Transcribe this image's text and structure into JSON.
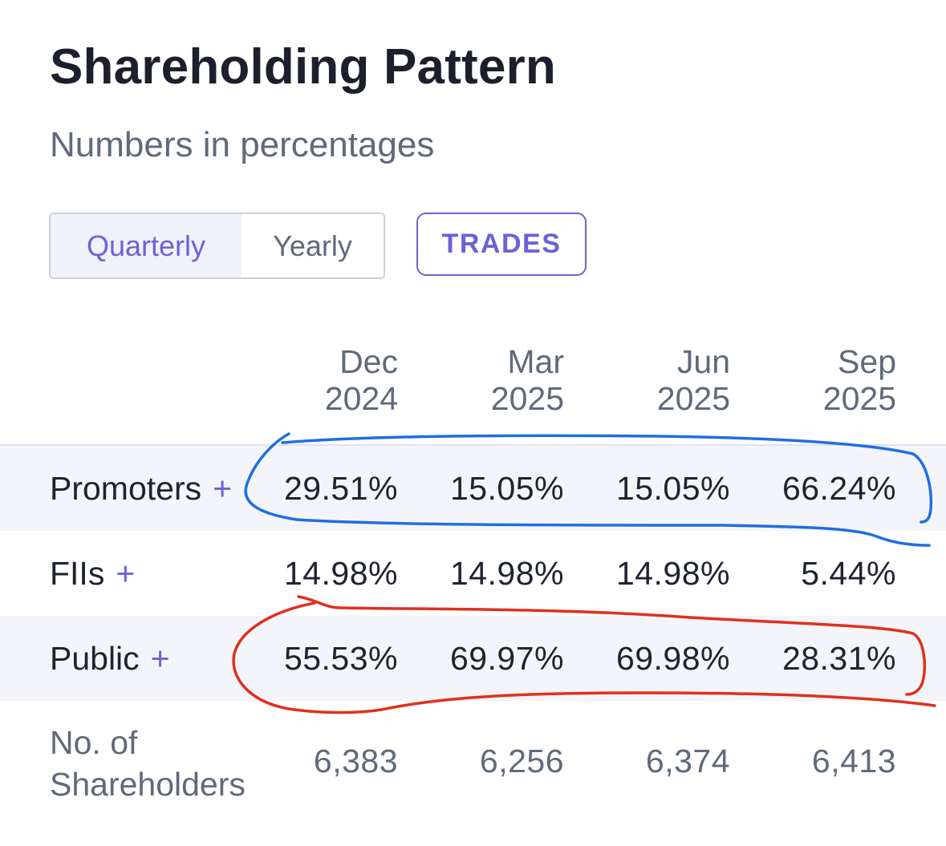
{
  "header": {
    "title": "Shareholding Pattern",
    "subtitle": "Numbers in percentages"
  },
  "controls": {
    "period_options": [
      "Quarterly",
      "Yearly"
    ],
    "selected_period": "Quarterly",
    "trades_label": "TRADES"
  },
  "table": {
    "columns": [
      {
        "month": "Dec",
        "year": "2024"
      },
      {
        "month": "Mar",
        "year": "2025"
      },
      {
        "month": "Jun",
        "year": "2025"
      },
      {
        "month": "Sep",
        "year": "2025"
      }
    ],
    "rows": [
      {
        "label": "Promoters",
        "expand": "+",
        "values": [
          "29.51%",
          "15.05%",
          "15.05%",
          "66.24%"
        ]
      },
      {
        "label": "FIIs",
        "expand": "+",
        "values": [
          "14.98%",
          "14.98%",
          "14.98%",
          "5.44%"
        ]
      },
      {
        "label": "Public",
        "expand": "+",
        "values": [
          "55.53%",
          "69.97%",
          "69.98%",
          "28.31%"
        ]
      },
      {
        "label": "No. of Shareholders",
        "values": [
          "6,383",
          "6,256",
          "6,374",
          "6,413"
        ]
      }
    ]
  },
  "annotations": {
    "colors": {
      "blue": "#1f6fe0",
      "red": "#e0301e"
    }
  }
}
